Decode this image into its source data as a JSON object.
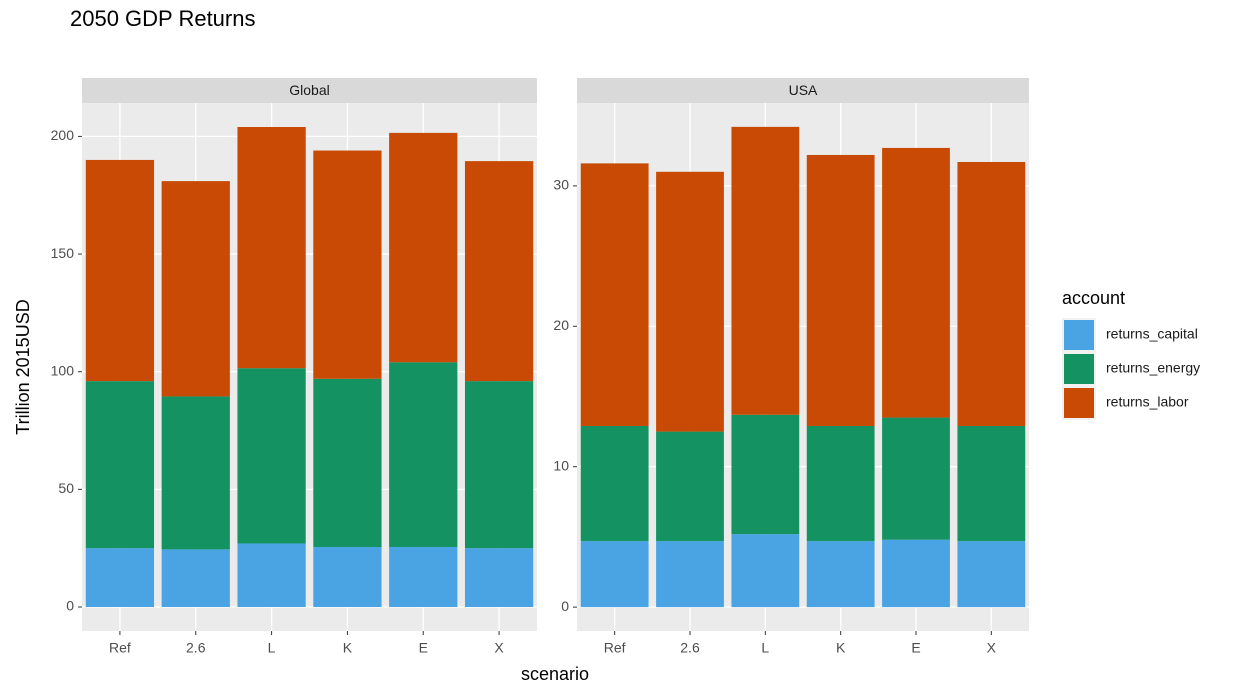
{
  "chart_data": [
    {
      "type": "bar",
      "stacked": true,
      "title": "2050 GDP Returns",
      "panel": "Global",
      "x_label": "scenario",
      "y_label": "Trillion 2015USD",
      "legend_title": "account",
      "categories": [
        "Ref",
        "2.6",
        "L",
        "K",
        "E",
        "X"
      ],
      "series": [
        {
          "name": "returns_capital",
          "color": "#4aa3e3",
          "values": [
            25,
            24.5,
            27,
            25.5,
            25.5,
            25
          ]
        },
        {
          "name": "returns_energy",
          "color": "#159261",
          "values": [
            71,
            65,
            74.5,
            71.5,
            78.5,
            71
          ]
        },
        {
          "name": "returns_labor",
          "color": "#c94a04",
          "values": [
            94,
            91.5,
            102.5,
            97,
            97.5,
            93.5
          ]
        }
      ],
      "ylim": [
        -10.2,
        214.2
      ],
      "yticks": [
        0,
        50,
        100,
        150,
        200
      ],
      "grid": true
    },
    {
      "type": "bar",
      "stacked": true,
      "panel": "USA",
      "categories": [
        "Ref",
        "2.6",
        "L",
        "K",
        "E",
        "X"
      ],
      "series": [
        {
          "name": "returns_capital",
          "color": "#4aa3e3",
          "values": [
            4.7,
            4.7,
            5.2,
            4.7,
            4.8,
            4.7
          ]
        },
        {
          "name": "returns_energy",
          "color": "#159261",
          "values": [
            8.2,
            7.8,
            8.5,
            8.2,
            8.7,
            8.2
          ]
        },
        {
          "name": "returns_labor",
          "color": "#c94a04",
          "values": [
            18.7,
            18.5,
            20.5,
            19.3,
            19.2,
            18.8
          ]
        }
      ],
      "ylim": [
        -1.7,
        35.9
      ],
      "yticks": [
        0,
        10,
        20,
        30
      ],
      "grid": true
    }
  ]
}
